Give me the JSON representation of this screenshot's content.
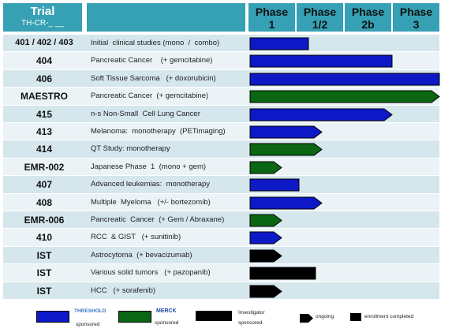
{
  "header": {
    "trial_label": "Trial",
    "trial_sub": "TH-CR-_ __",
    "phases": [
      {
        "line1": "Phase",
        "line2": "1"
      },
      {
        "line1": "Phase",
        "line2": "1/2"
      },
      {
        "line1": "Phase",
        "line2": "2b"
      },
      {
        "line1": "Phase",
        "line2": "3"
      }
    ]
  },
  "colors": {
    "header_bg": "#36a0b4",
    "row_a": "#d5e6ed",
    "row_b": "#ebf3f6",
    "threshold": "#0d19c7",
    "merck": "#0a6612",
    "investigator": "#000000"
  },
  "rows": [
    {
      "trial": "401 / 402 / 403",
      "desc": "Initial  clinical studies (mono  /  combo)",
      "sponsor": "threshold",
      "shape": "rect",
      "extent": 0.31
    },
    {
      "trial": "404",
      "desc": "Pancreatic Cancer    (+ gemcitabine)",
      "sponsor": "threshold",
      "shape": "rect",
      "extent": 0.75
    },
    {
      "trial": "406",
      "desc": "Soft Tissue Sarcoma   (+ doxorubicin)",
      "sponsor": "threshold",
      "shape": "rect",
      "extent": 1.0
    },
    {
      "trial": "MAESTRO",
      "desc": "Pancreatic Cancer  (+ gemcitabine)",
      "sponsor": "merck",
      "shape": "arrow",
      "extent": 1.0
    },
    {
      "trial": "415",
      "desc": "n-s Non-Small  Cell Lung Cancer",
      "sponsor": "threshold",
      "shape": "arrow",
      "extent": 0.75
    },
    {
      "trial": "413",
      "desc": "Melanoma:  monotherapy  (PETimaging)",
      "sponsor": "threshold",
      "shape": "arrow",
      "extent": 0.38
    },
    {
      "trial": "414",
      "desc": "QT Study: monotherapy",
      "sponsor": "merck",
      "shape": "arrow",
      "extent": 0.38
    },
    {
      "trial": "EMR-002",
      "desc": "Japanese Phase  1  (mono + gem)",
      "sponsor": "merck",
      "shape": "arrow",
      "extent": 0.17
    },
    {
      "trial": "407",
      "desc": "Advanced leukemias:  monotherapy",
      "sponsor": "threshold",
      "shape": "rect",
      "extent": 0.26
    },
    {
      "trial": "408",
      "desc": "Multiple  Myeloma   (+/- bortezomib)",
      "sponsor": "threshold",
      "shape": "arrow",
      "extent": 0.38
    },
    {
      "trial": "EMR-006",
      "desc": "Pancreatic  Cancer  (+ Gem / Abraxane)",
      "sponsor": "merck",
      "shape": "arrow",
      "extent": 0.17
    },
    {
      "trial": "410",
      "desc": "RCC  & GIST   (+ sunitinib)",
      "sponsor": "threshold",
      "shape": "arrow",
      "extent": 0.17
    },
    {
      "trial": "IST",
      "desc": "Astrocytoma  (+ bevacizumab)",
      "sponsor": "investigator",
      "shape": "arrow",
      "extent": 0.17
    },
    {
      "trial": "IST",
      "desc": "Various solid tumors   (+ pazopanib)",
      "sponsor": "investigator",
      "shape": "rect",
      "extent": 0.35
    },
    {
      "trial": "IST",
      "desc": "HCC   (+ sorafenib)",
      "sponsor": "investigator",
      "shape": "arrow",
      "extent": 0.17
    }
  ],
  "legend": {
    "threshold_logo": "THRESHOLD",
    "threshold_label": "sponsored",
    "merck_logo": "MERCK",
    "merck_label": "sponsored",
    "investigator_label_1": "Investigator",
    "investigator_label_2": "sponsored",
    "ongoing_label": "ongoing",
    "completed_label": "enrollment   completed"
  }
}
